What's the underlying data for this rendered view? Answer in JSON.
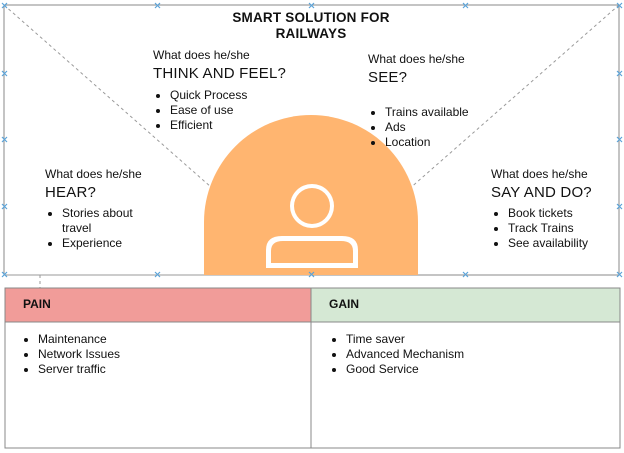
{
  "title": "SMART SOLUTION FOR RAILWAYS",
  "colors": {
    "avatar_fill": "#ffb570",
    "pain_header": "#f19c99",
    "gain_header": "#d5e8d4",
    "border": "#888888",
    "guide": "#9a9a9a",
    "handle": "#5ba3d9"
  },
  "quadrants": {
    "think_feel": {
      "question": "What does he/she",
      "heading": "THINK AND FEEL?",
      "items": [
        "Quick Process",
        "Ease of use",
        "Efficient"
      ]
    },
    "see": {
      "question": "What does he/she",
      "heading": "SEE?",
      "items": [
        "Trains available",
        "Ads",
        "Location"
      ]
    },
    "hear": {
      "question": "What does he/she",
      "heading": "HEAR?",
      "items": [
        "Stories about travel",
        "Experience"
      ]
    },
    "say_do": {
      "question": "What does he/she",
      "heading": "SAY AND DO?",
      "items": [
        "Book tickets",
        "Track Trains",
        "See availability"
      ]
    }
  },
  "pain": {
    "label": "PAIN",
    "items": [
      "Maintenance",
      "Network Issues",
      "Server traffic"
    ]
  },
  "gain": {
    "label": "GAIN",
    "items": [
      "Time saver",
      "Advanced Mechanism",
      "Good Service"
    ]
  },
  "icons": {
    "avatar": "user-icon"
  }
}
